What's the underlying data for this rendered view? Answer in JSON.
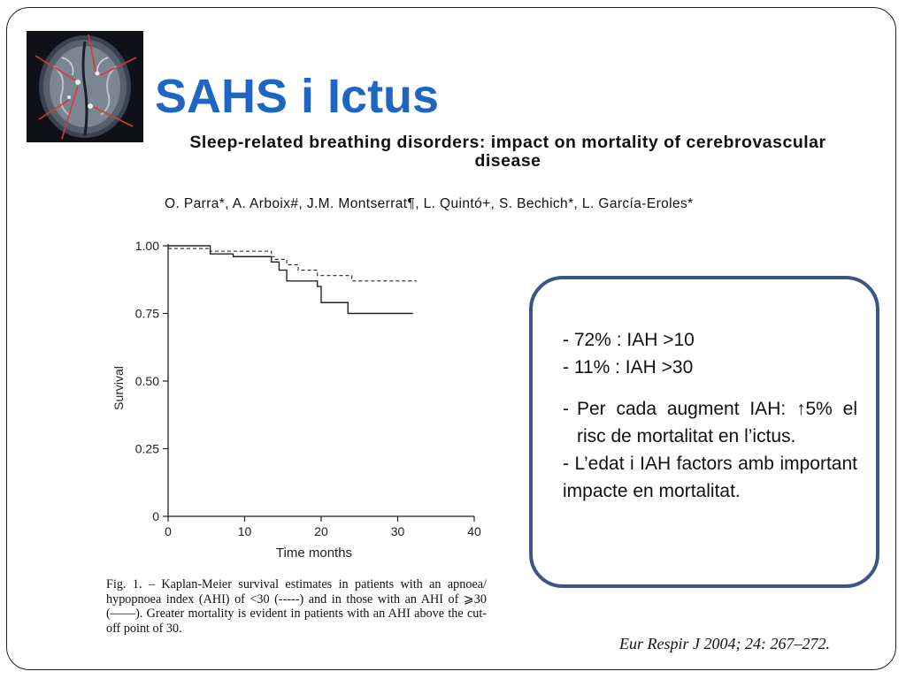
{
  "slide": {
    "title": "SAHS i Ictus",
    "paper_title": "Sleep-related breathing disorders: impact on mortality of cerebrovascular disease",
    "authors": "O. Parra*, A. Arboix#, J.M. Montserrat¶, L. Quintó+, S. Bechich*, L. García-Eroles*",
    "caption": "Fig. 1. – Kaplan-Meier survival estimates in patients with an apnoea/ hypopnoea index (AHI) of <30 (-----) and in those with an AHI of ⩾30 (——). Greater mortality is evident in patients with an AHI above the cut-off point of 30.",
    "citation": "Eur Respir J 2004; 24: 267–272.",
    "icons": {
      "brain_image": "brain-mri-icon"
    },
    "colors": {
      "title": "#1f66c4",
      "box_border": "#3a5588"
    }
  },
  "box": {
    "line1": "- 72% : IAH >10",
    "line2": "- 11% : IAH >30",
    "line3_dash": "-",
    "line3": "Per cada augment IAH: ↑5% el risc de mortalitat en l’ictus.",
    "line4": "- L’edat i IAH factors amb important impacte en mortalitat."
  },
  "chart_data": {
    "type": "line",
    "title": "",
    "xlabel": "Time months",
    "ylabel": "Survival",
    "xlim": [
      0,
      40
    ],
    "ylim": [
      0,
      1.0
    ],
    "xticks": [
      0,
      10,
      20,
      30,
      40
    ],
    "yticks": [
      0,
      0.25,
      0.5,
      0.75,
      1.0
    ],
    "ytick_labels": [
      "0",
      "0.25",
      "0.50",
      "0.75",
      "1.00"
    ],
    "xtick_labels": [
      "0",
      "10",
      "20",
      "30",
      "40"
    ],
    "grid": false,
    "series": [
      {
        "style": "dashed",
        "x": [
          0,
          5.5,
          8,
          13.5,
          14,
          15.5,
          17,
          19.5,
          20.5,
          24,
          32.5
        ],
        "y": [
          0.99,
          0.98,
          0.98,
          0.96,
          0.95,
          0.93,
          0.91,
          0.89,
          0.89,
          0.87,
          0.87
        ]
      },
      {
        "style": "solid",
        "x": [
          0,
          5.5,
          8.5,
          13.5,
          14.5,
          15.5,
          19.5,
          20,
          23.5,
          32
        ],
        "y": [
          1.0,
          0.97,
          0.96,
          0.94,
          0.91,
          0.87,
          0.85,
          0.79,
          0.75,
          0.75
        ]
      }
    ]
  }
}
